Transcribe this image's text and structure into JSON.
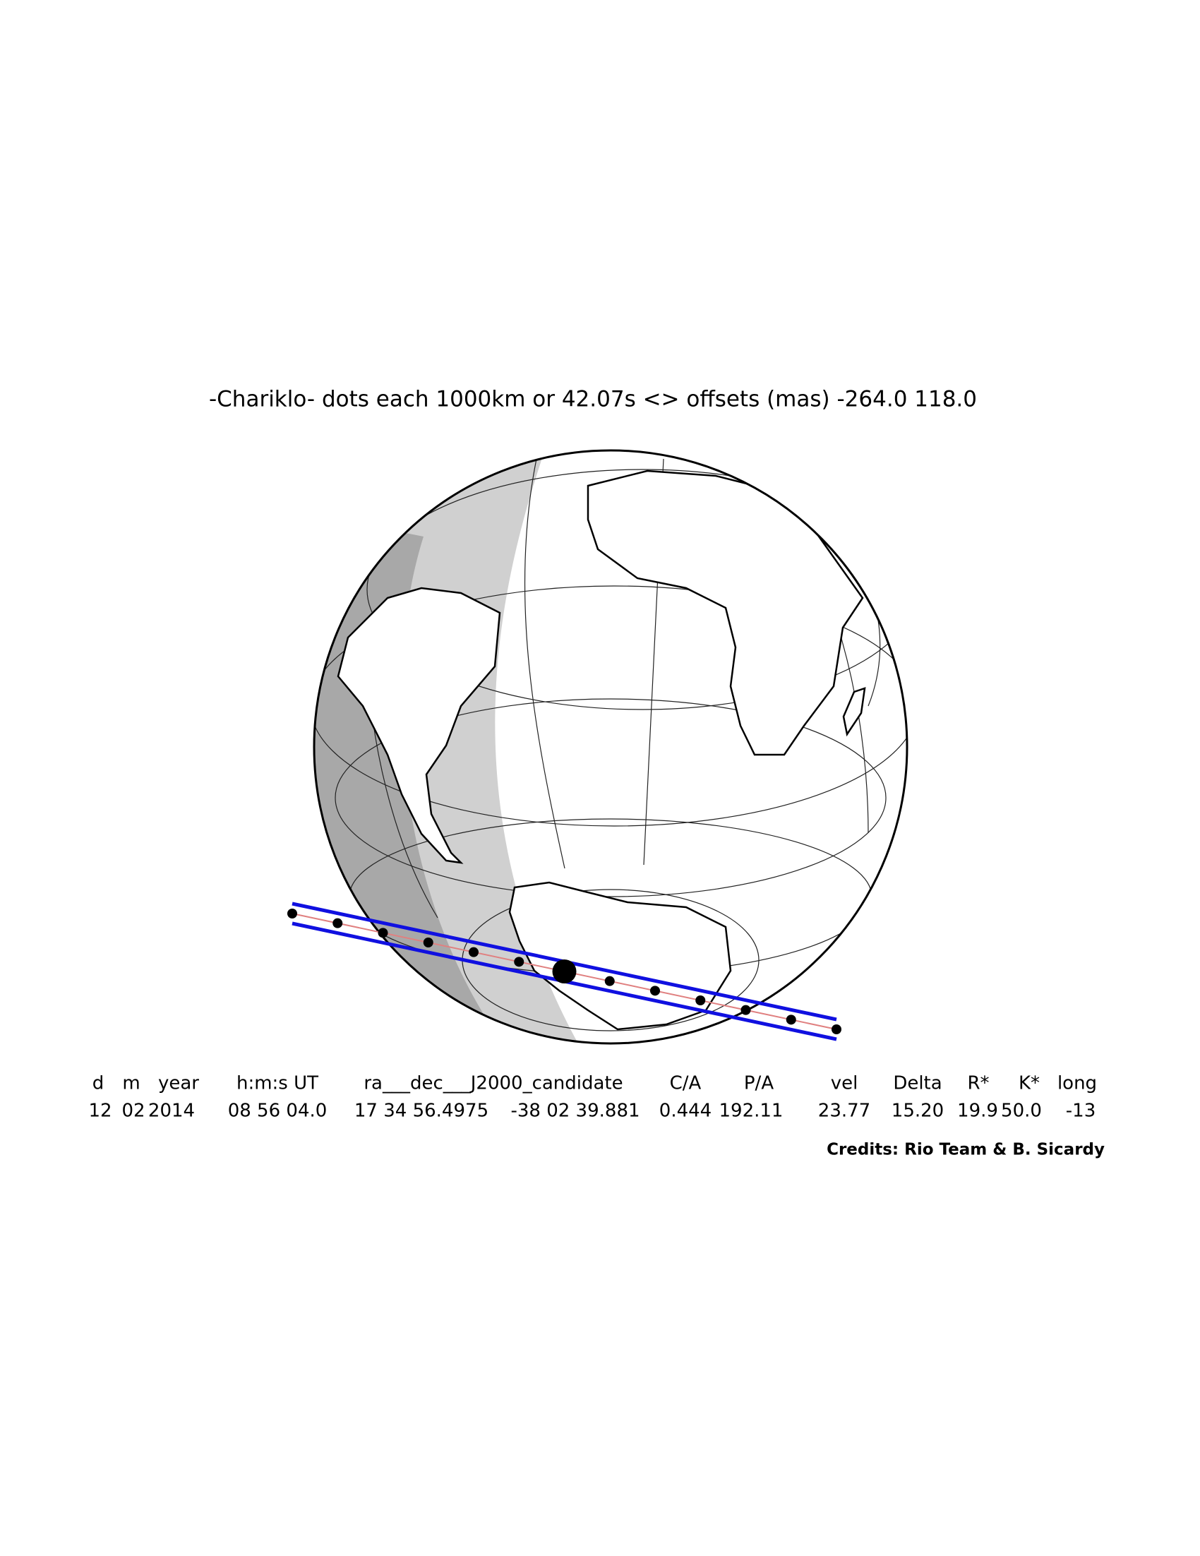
{
  "title": "-Chariklo- dots each 1000km or 42.07s <> offsets (mas) -264.0  118.0",
  "table": {
    "headers": [
      "d",
      "m",
      "year",
      "h:m:s UT",
      "ra___dec___J2000_candidate",
      "C/A",
      "P/A",
      "vel",
      "Delta",
      "R*",
      "K*",
      "long"
    ],
    "values": [
      "12",
      "02",
      "2014",
      "08 56 04.0",
      "17 34 56.4975",
      "-38 02 39.881",
      "0.444",
      "192.11",
      "23.77",
      "15.20",
      "19.9",
      "50.0",
      "-13"
    ]
  },
  "credits": "Credits: Rio Team & B. Sicardy"
}
